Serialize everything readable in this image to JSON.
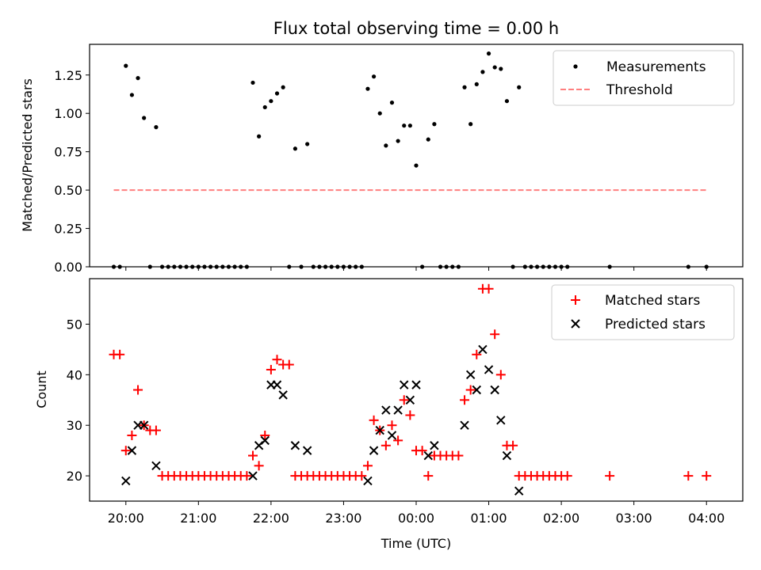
{
  "chart_data": [
    {
      "type": "scatter",
      "title": "Flux total observing time = 0.00 h",
      "xlabel": "",
      "ylabel": "Matched/Predicted stars",
      "xlim": [
        "19:30",
        "04:30"
      ],
      "ylim": [
        0,
        1.45
      ],
      "yticks": [
        "0.00",
        "0.25",
        "0.50",
        "0.75",
        "1.00",
        "1.25"
      ],
      "ytick_values": [
        0,
        0.25,
        0.5,
        0.75,
        1.0,
        1.25
      ],
      "legend_position": "upper right",
      "grid": false,
      "series": [
        {
          "name": "Measurements",
          "marker": "dot",
          "color": "#000000",
          "points": [
            [
              "19:50",
              0
            ],
            [
              "19:55",
              0
            ],
            [
              "20:00",
              1.31
            ],
            [
              "20:05",
              1.12
            ],
            [
              "20:10",
              1.23
            ],
            [
              "20:15",
              0.97
            ],
            [
              "20:20",
              0
            ],
            [
              "20:25",
              0.91
            ],
            [
              "20:30",
              0
            ],
            [
              "20:35",
              0
            ],
            [
              "20:40",
              0
            ],
            [
              "20:45",
              0
            ],
            [
              "20:50",
              0
            ],
            [
              "20:55",
              0
            ],
            [
              "21:00",
              0
            ],
            [
              "21:05",
              0
            ],
            [
              "21:10",
              0
            ],
            [
              "21:15",
              0
            ],
            [
              "21:20",
              0
            ],
            [
              "21:25",
              0
            ],
            [
              "21:30",
              0
            ],
            [
              "21:35",
              0
            ],
            [
              "21:40",
              0
            ],
            [
              "21:45",
              1.2
            ],
            [
              "21:50",
              0.85
            ],
            [
              "21:55",
              1.04
            ],
            [
              "22:00",
              1.08
            ],
            [
              "22:05",
              1.13
            ],
            [
              "22:10",
              1.17
            ],
            [
              "22:15",
              0
            ],
            [
              "22:20",
              0.77
            ],
            [
              "22:25",
              0
            ],
            [
              "22:30",
              0.8
            ],
            [
              "22:35",
              0
            ],
            [
              "22:40",
              0
            ],
            [
              "22:45",
              0
            ],
            [
              "22:50",
              0
            ],
            [
              "22:55",
              0
            ],
            [
              "23:00",
              0
            ],
            [
              "23:05",
              0
            ],
            [
              "23:10",
              0
            ],
            [
              "23:15",
              0
            ],
            [
              "23:20",
              1.16
            ],
            [
              "23:25",
              1.24
            ],
            [
              "23:30",
              1.0
            ],
            [
              "23:35",
              0.79
            ],
            [
              "23:40",
              1.07
            ],
            [
              "23:45",
              0.82
            ],
            [
              "23:50",
              0.92
            ],
            [
              "23:55",
              0.92
            ],
            [
              "00:00",
              0.66
            ],
            [
              "00:05",
              0
            ],
            [
              "00:10",
              0.83
            ],
            [
              "00:15",
              0.93
            ],
            [
              "00:20",
              0
            ],
            [
              "00:25",
              0
            ],
            [
              "00:30",
              0
            ],
            [
              "00:35",
              0
            ],
            [
              "00:40",
              1.17
            ],
            [
              "00:45",
              0.93
            ],
            [
              "00:50",
              1.19
            ],
            [
              "00:55",
              1.27
            ],
            [
              "01:00",
              1.39
            ],
            [
              "01:05",
              1.3
            ],
            [
              "01:10",
              1.29
            ],
            [
              "01:15",
              1.08
            ],
            [
              "01:20",
              0
            ],
            [
              "01:25",
              1.17
            ],
            [
              "01:30",
              0
            ],
            [
              "01:35",
              0
            ],
            [
              "01:40",
              0
            ],
            [
              "01:45",
              0
            ],
            [
              "01:50",
              0
            ],
            [
              "01:55",
              0
            ],
            [
              "02:00",
              0
            ],
            [
              "02:05",
              0
            ],
            [
              "02:40",
              0
            ],
            [
              "03:45",
              0
            ],
            [
              "04:00",
              0
            ]
          ]
        },
        {
          "name": "Threshold",
          "marker": "dashed-line",
          "color": "#ff7f7f",
          "points": [
            [
              "19:50",
              0.5
            ],
            [
              "04:00",
              0.5
            ]
          ]
        }
      ]
    },
    {
      "type": "scatter",
      "title": "",
      "xlabel": "Time (UTC)",
      "ylabel": "Count",
      "xlim": [
        "19:30",
        "04:30"
      ],
      "ylim": [
        15,
        59
      ],
      "xticks": [
        "20:00",
        "21:00",
        "22:00",
        "23:00",
        "00:00",
        "01:00",
        "02:00",
        "03:00",
        "04:00"
      ],
      "yticks": [
        "20",
        "30",
        "40",
        "50"
      ],
      "ytick_values": [
        20,
        30,
        40,
        50
      ],
      "legend_position": "upper right",
      "grid": false,
      "series": [
        {
          "name": "Matched stars",
          "marker": "plus",
          "color": "#ff0000",
          "points": [
            [
              "19:50",
              44
            ],
            [
              "19:55",
              44
            ],
            [
              "20:00",
              25
            ],
            [
              "20:05",
              28
            ],
            [
              "20:10",
              37
            ],
            [
              "20:15",
              30
            ],
            [
              "20:20",
              29
            ],
            [
              "20:25",
              29
            ],
            [
              "20:30",
              20
            ],
            [
              "20:35",
              20
            ],
            [
              "20:40",
              20
            ],
            [
              "20:45",
              20
            ],
            [
              "20:50",
              20
            ],
            [
              "20:55",
              20
            ],
            [
              "21:00",
              20
            ],
            [
              "21:05",
              20
            ],
            [
              "21:10",
              20
            ],
            [
              "21:15",
              20
            ],
            [
              "21:20",
              20
            ],
            [
              "21:25",
              20
            ],
            [
              "21:30",
              20
            ],
            [
              "21:35",
              20
            ],
            [
              "21:40",
              20
            ],
            [
              "21:45",
              24
            ],
            [
              "21:50",
              22
            ],
            [
              "21:55",
              28
            ],
            [
              "22:00",
              41
            ],
            [
              "22:05",
              43
            ],
            [
              "22:10",
              42
            ],
            [
              "22:15",
              42
            ],
            [
              "22:20",
              20
            ],
            [
              "22:25",
              20
            ],
            [
              "22:30",
              20
            ],
            [
              "22:35",
              20
            ],
            [
              "22:40",
              20
            ],
            [
              "22:45",
              20
            ],
            [
              "22:50",
              20
            ],
            [
              "22:55",
              20
            ],
            [
              "23:00",
              20
            ],
            [
              "23:05",
              20
            ],
            [
              "23:10",
              20
            ],
            [
              "23:15",
              20
            ],
            [
              "23:20",
              22
            ],
            [
              "23:25",
              31
            ],
            [
              "23:30",
              29
            ],
            [
              "23:35",
              26
            ],
            [
              "23:40",
              30
            ],
            [
              "23:45",
              27
            ],
            [
              "23:50",
              35
            ],
            [
              "23:55",
              32
            ],
            [
              "00:00",
              25
            ],
            [
              "00:05",
              25
            ],
            [
              "00:10",
              20
            ],
            [
              "00:15",
              24
            ],
            [
              "00:20",
              24
            ],
            [
              "00:25",
              24
            ],
            [
              "00:30",
              24
            ],
            [
              "00:35",
              24
            ],
            [
              "00:40",
              35
            ],
            [
              "00:45",
              37
            ],
            [
              "00:50",
              44
            ],
            [
              "00:55",
              57
            ],
            [
              "01:00",
              57
            ],
            [
              "01:05",
              48
            ],
            [
              "01:10",
              40
            ],
            [
              "01:15",
              26
            ],
            [
              "01:20",
              26
            ],
            [
              "01:25",
              20
            ],
            [
              "01:30",
              20
            ],
            [
              "01:35",
              20
            ],
            [
              "01:40",
              20
            ],
            [
              "01:45",
              20
            ],
            [
              "01:50",
              20
            ],
            [
              "01:55",
              20
            ],
            [
              "02:00",
              20
            ],
            [
              "02:05",
              20
            ],
            [
              "02:40",
              20
            ],
            [
              "03:45",
              20
            ],
            [
              "04:00",
              20
            ]
          ]
        },
        {
          "name": "Predicted stars",
          "marker": "x",
          "color": "#000000",
          "points": [
            [
              "20:00",
              19
            ],
            [
              "20:05",
              25
            ],
            [
              "20:10",
              30
            ],
            [
              "20:15",
              30
            ],
            [
              "20:25",
              22
            ],
            [
              "21:45",
              20
            ],
            [
              "21:50",
              26
            ],
            [
              "21:55",
              27
            ],
            [
              "22:00",
              38
            ],
            [
              "22:05",
              38
            ],
            [
              "22:10",
              36
            ],
            [
              "22:20",
              26
            ],
            [
              "22:30",
              25
            ],
            [
              "23:20",
              19
            ],
            [
              "23:25",
              25
            ],
            [
              "23:30",
              29
            ],
            [
              "23:35",
              33
            ],
            [
              "23:40",
              28
            ],
            [
              "23:45",
              33
            ],
            [
              "23:50",
              38
            ],
            [
              "23:55",
              35
            ],
            [
              "00:00",
              38
            ],
            [
              "00:10",
              24
            ],
            [
              "00:15",
              26
            ],
            [
              "00:40",
              30
            ],
            [
              "00:45",
              40
            ],
            [
              "00:50",
              37
            ],
            [
              "00:55",
              45
            ],
            [
              "01:00",
              41
            ],
            [
              "01:05",
              37
            ],
            [
              "01:10",
              31
            ],
            [
              "01:15",
              24
            ],
            [
              "01:25",
              17
            ]
          ]
        }
      ]
    }
  ]
}
